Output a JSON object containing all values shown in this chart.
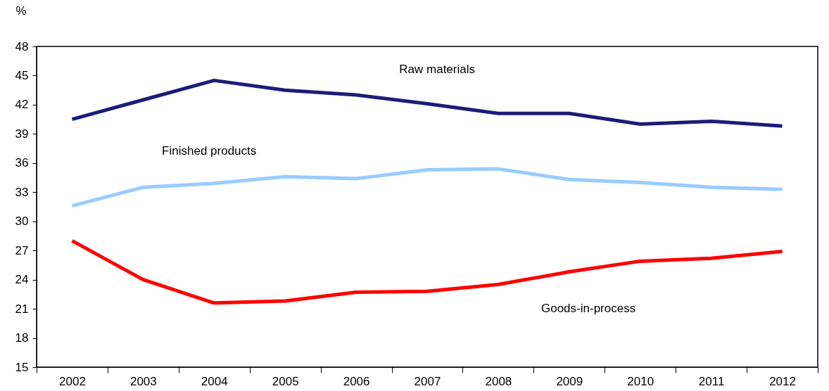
{
  "chart_data": {
    "type": "line",
    "ylabel": "%",
    "categories": [
      "2002",
      "2003",
      "2004",
      "2005",
      "2006",
      "2007",
      "2008",
      "2009",
      "2010",
      "2011",
      "2012"
    ],
    "series": [
      {
        "name": "Raw  materials",
        "color": "#1c1c78",
        "values": [
          40.5,
          42.5,
          44.5,
          43.5,
          43.0,
          42.1,
          41.1,
          41.1,
          40.0,
          40.3,
          39.8
        ]
      },
      {
        "name": "Finished products",
        "color": "#99ccff",
        "values": [
          31.6,
          33.5,
          33.9,
          34.6,
          34.4,
          35.3,
          35.4,
          34.3,
          34.0,
          33.5,
          33.3
        ]
      },
      {
        "name": "Goods-in-process",
        "color": "#ff0000",
        "values": [
          28.0,
          24.0,
          21.6,
          21.8,
          22.7,
          22.8,
          23.5,
          24.8,
          25.9,
          26.2,
          26.9
        ]
      }
    ],
    "ylim": [
      15,
      48
    ],
    "yticks": [
      15,
      18,
      21,
      24,
      27,
      30,
      33,
      36,
      39,
      42,
      45,
      48
    ],
    "grid": false,
    "marker": "none",
    "line_style": "solid"
  }
}
